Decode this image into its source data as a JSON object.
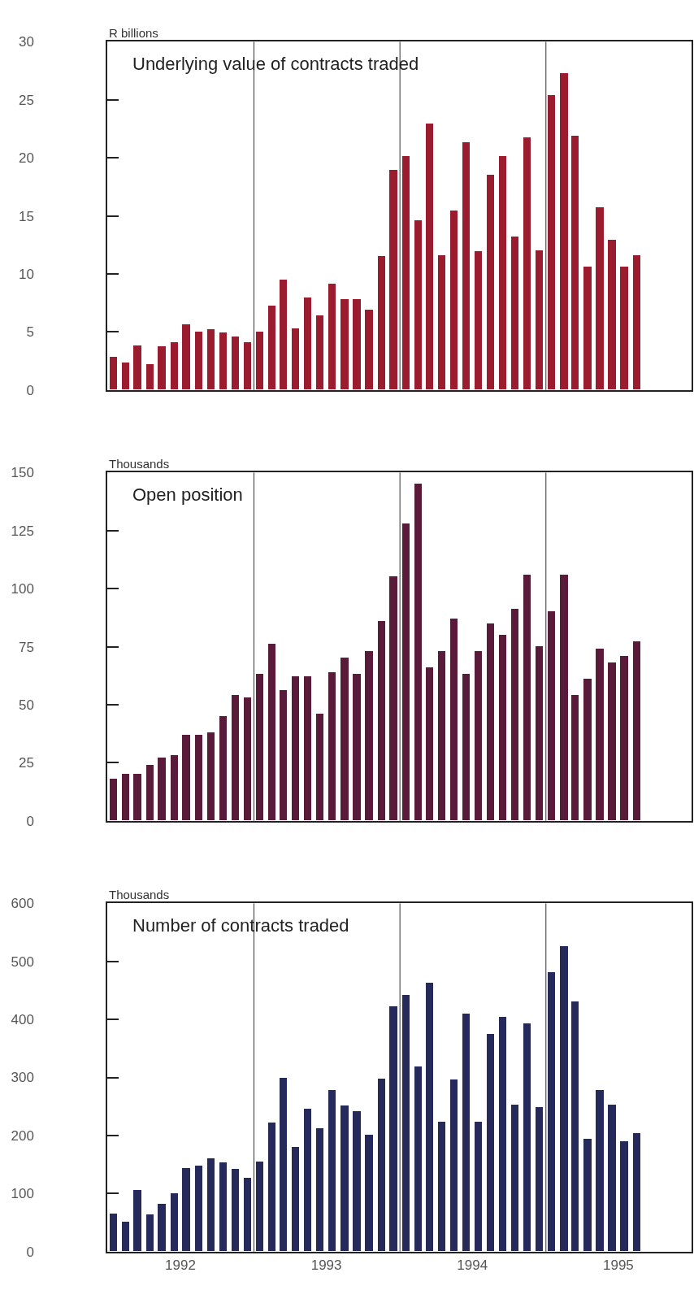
{
  "chart_data": [
    {
      "type": "bar",
      "title": "Underlying value of contracts traded",
      "ylabel": "R billions",
      "color": "#9b1c2e",
      "x": [
        "1992-01-16",
        "1992-02-16",
        "1992-03-16",
        "1992-04-16",
        "1992-05-16",
        "1992-06-16",
        "1992-07-16",
        "1992-08-16",
        "1992-09-16",
        "1992-10-16",
        "1992-11-16",
        "1992-12-16",
        "1993-01-16",
        "1993-02-16",
        "1993-03-16",
        "1993-04-16",
        "1993-05-16",
        "1993-06-16",
        "1993-07-16",
        "1993-08-16",
        "1993-09-16",
        "1993-10-16",
        "1993-11-16",
        "1993-12-16",
        "1994-01-16",
        "1994-02-16",
        "1994-03-16",
        "1994-04-16",
        "1994-05-16",
        "1994-06-16",
        "1994-07-16",
        "1994-08-16",
        "1994-09-16",
        "1994-10-16",
        "1994-11-16",
        "1994-12-16",
        "1995-01-16",
        "1995-02-16",
        "1995-03-16",
        "1995-04-16",
        "1995-05-16",
        "1995-06-16",
        "1995-07-16",
        "1995-08-16"
      ],
      "values": [
        2.8,
        2.3,
        3.8,
        2.2,
        3.7,
        4.1,
        5.6,
        5.0,
        5.2,
        4.9,
        4.6,
        4.1,
        5.0,
        7.2,
        9.5,
        5.3,
        7.9,
        6.4,
        9.1,
        7.8,
        7.8,
        6.9,
        11.5,
        18.9,
        20.1,
        14.6,
        22.9,
        11.6,
        15.4,
        21.3,
        11.9,
        18.5,
        20.1,
        13.2,
        21.7,
        12.0,
        25.4,
        27.3,
        21.9,
        10.6,
        15.7,
        12.9,
        10.6,
        11.6
      ],
      "xlim": [
        "1992-01-01",
        "1996-01-01"
      ],
      "ylim": [
        0,
        30
      ],
      "yticks": [
        0,
        5,
        10,
        15,
        20,
        25,
        30
      ],
      "tick_labels": "y",
      "ref_lines": [
        {
          "axis": "x",
          "value": "1993-01-01"
        },
        {
          "axis": "x",
          "value": "1994-01-01"
        },
        {
          "axis": "x",
          "value": "1995-01-01"
        }
      ]
    },
    {
      "type": "bar",
      "title": "Open position",
      "ylabel": "Thousands",
      "color": "#5a1a3a",
      "x": [
        "1992-01-16",
        "1992-02-16",
        "1992-03-16",
        "1992-04-16",
        "1992-05-16",
        "1992-06-16",
        "1992-07-16",
        "1992-08-16",
        "1992-09-16",
        "1992-10-16",
        "1992-11-16",
        "1992-12-16",
        "1993-01-16",
        "1993-02-16",
        "1993-03-16",
        "1993-04-16",
        "1993-05-16",
        "1993-06-16",
        "1993-07-16",
        "1993-08-16",
        "1993-09-16",
        "1993-10-16",
        "1993-11-16",
        "1993-12-16",
        "1994-01-16",
        "1994-02-16",
        "1994-03-16",
        "1994-04-16",
        "1994-05-16",
        "1994-06-16",
        "1994-07-16",
        "1994-08-16",
        "1994-09-16",
        "1994-10-16",
        "1994-11-16",
        "1994-12-16",
        "1995-01-16",
        "1995-02-16",
        "1995-03-16",
        "1995-04-16",
        "1995-05-16",
        "1995-06-16",
        "1995-07-16",
        "1995-08-16"
      ],
      "values": [
        18,
        20,
        20,
        24,
        27,
        28,
        37,
        37,
        38,
        45,
        54,
        53,
        63,
        76,
        56,
        62,
        62,
        46,
        64,
        70,
        63,
        73,
        86,
        105,
        128,
        145,
        66,
        73,
        87,
        63,
        73,
        85,
        80,
        91,
        106,
        75,
        90,
        106,
        54,
        61,
        74,
        68,
        71,
        77
      ],
      "xlim": [
        "1992-01-01",
        "1996-01-01"
      ],
      "ylim": [
        0,
        150
      ],
      "yticks": [
        0,
        25,
        50,
        75,
        100,
        125,
        150
      ],
      "tick_labels": "y",
      "ref_lines": [
        {
          "axis": "x",
          "value": "1993-01-01"
        },
        {
          "axis": "x",
          "value": "1994-01-01"
        },
        {
          "axis": "x",
          "value": "1995-01-01"
        }
      ]
    },
    {
      "type": "bar",
      "title": "Number of contracts traded",
      "ylabel": "Thousands",
      "color": "#262a5a",
      "x": [
        "1992-01-16",
        "1992-02-16",
        "1992-03-16",
        "1992-04-16",
        "1992-05-16",
        "1992-06-16",
        "1992-07-16",
        "1992-08-16",
        "1992-09-16",
        "1992-10-16",
        "1992-11-16",
        "1992-12-16",
        "1993-01-16",
        "1993-02-16",
        "1993-03-16",
        "1993-04-16",
        "1993-05-16",
        "1993-06-16",
        "1993-07-16",
        "1993-08-16",
        "1993-09-16",
        "1993-10-16",
        "1993-11-16",
        "1993-12-16",
        "1994-01-16",
        "1994-02-16",
        "1994-03-16",
        "1994-04-16",
        "1994-05-16",
        "1994-06-16",
        "1994-07-16",
        "1994-08-16",
        "1994-09-16",
        "1994-10-16",
        "1994-11-16",
        "1994-12-16",
        "1995-01-16",
        "1995-02-16",
        "1995-03-16",
        "1995-04-16",
        "1995-05-16",
        "1995-06-16",
        "1995-07-16",
        "1995-08-16"
      ],
      "values": [
        65,
        51,
        105,
        63,
        81,
        100,
        143,
        148,
        160,
        153,
        142,
        127,
        154,
        222,
        299,
        179,
        245,
        212,
        278,
        251,
        241,
        201,
        297,
        422,
        441,
        318,
        463,
        223,
        296,
        409,
        223,
        375,
        404,
        253,
        393,
        248,
        481,
        526,
        430,
        193,
        278,
        253,
        189,
        204
      ],
      "xlim": [
        "1992-01-01",
        "1996-01-01"
      ],
      "xticks": [
        {
          "value": "1992-07-01",
          "label": "1992"
        },
        {
          "value": "1993-07-01",
          "label": "1993"
        },
        {
          "value": "1994-07-01",
          "label": "1994"
        },
        {
          "value": "1995-07-01",
          "label": "1995"
        }
      ],
      "ylim": [
        0,
        600
      ],
      "yticks": [
        0,
        100,
        200,
        300,
        400,
        500,
        600
      ],
      "ref_lines": [
        {
          "axis": "x",
          "value": "1993-01-01"
        },
        {
          "axis": "x",
          "value": "1994-01-01"
        },
        {
          "axis": "x",
          "value": "1995-01-01"
        }
      ]
    }
  ]
}
